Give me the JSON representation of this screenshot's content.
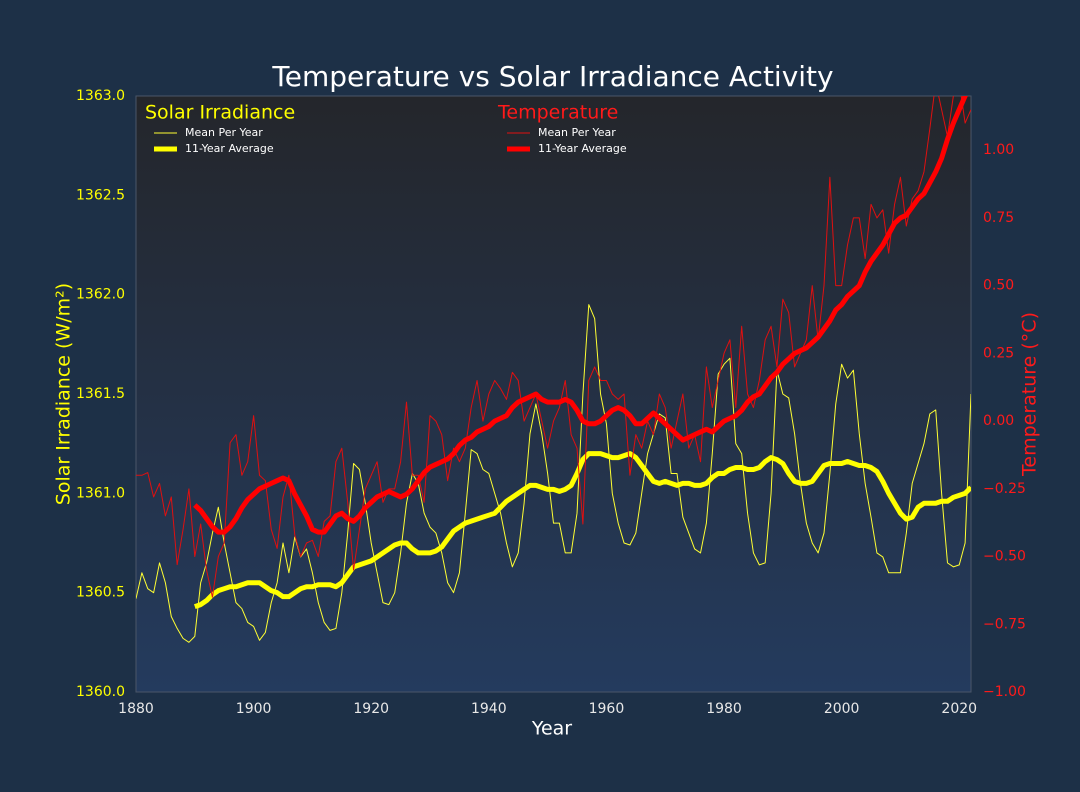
{
  "chart_data": {
    "type": "line",
    "title": "Temperature vs Solar Irradiance Activity",
    "xlabel": "Year",
    "ylabel": "Solar Irradiance (W/m²)",
    "y2label": "Temperature (°C)",
    "legend_titles": [
      "Solar Irradiance",
      "Temperature"
    ],
    "xlim": [
      1880,
      2022
    ],
    "xticks": [
      1880,
      1900,
      1920,
      1940,
      1960,
      1980,
      2000,
      2020
    ],
    "ylim": [
      1360,
      1363
    ],
    "yticks": [
      {
        "value": 1360,
        "label": "1360.0"
      },
      1360.5,
      {
        "value": 1361,
        "label": "1361.0"
      },
      1361.5,
      {
        "value": 1362,
        "label": "1362.0"
      },
      1362.5,
      {
        "value": 1363,
        "label": "1363.0"
      }
    ],
    "y2lim": [
      -1,
      1.2
    ],
    "y2ticks": [
      {
        "value": -1,
        "label": "−1.00"
      },
      {
        "value": -0.75,
        "label": "−0.75"
      },
      {
        "value": -0.5,
        "label": "−0.50"
      },
      {
        "value": -0.25,
        "label": "−0.25"
      },
      {
        "value": 0,
        "label": "0.00"
      },
      {
        "value": 0.25,
        "label": "0.25"
      },
      {
        "value": 0.5,
        "label": "0.50"
      },
      {
        "value": 0.75,
        "label": "0.75"
      },
      {
        "value": 1,
        "label": "1.00"
      }
    ],
    "grid": false,
    "x": [
      1880,
      1881,
      1882,
      1883,
      1884,
      1885,
      1886,
      1887,
      1888,
      1889,
      1890,
      1891,
      1892,
      1893,
      1894,
      1895,
      1896,
      1897,
      1898,
      1899,
      1900,
      1901,
      1902,
      1903,
      1904,
      1905,
      1906,
      1907,
      1908,
      1909,
      1910,
      1911,
      1912,
      1913,
      1914,
      1915,
      1916,
      1917,
      1918,
      1919,
      1920,
      1921,
      1922,
      1923,
      1924,
      1925,
      1926,
      1927,
      1928,
      1929,
      1930,
      1931,
      1932,
      1933,
      1934,
      1935,
      1936,
      1937,
      1938,
      1939,
      1940,
      1941,
      1942,
      1943,
      1944,
      1945,
      1946,
      1947,
      1948,
      1949,
      1950,
      1951,
      1952,
      1953,
      1954,
      1955,
      1956,
      1957,
      1958,
      1959,
      1960,
      1961,
      1962,
      1963,
      1964,
      1965,
      1966,
      1967,
      1968,
      1969,
      1970,
      1971,
      1972,
      1973,
      1974,
      1975,
      1976,
      1977,
      1978,
      1979,
      1980,
      1981,
      1982,
      1983,
      1984,
      1985,
      1986,
      1987,
      1988,
      1989,
      1990,
      1991,
      1992,
      1993,
      1994,
      1995,
      1996,
      1997,
      1998,
      1999,
      2000,
      2001,
      2002,
      2003,
      2004,
      2005,
      2006,
      2007,
      2008,
      2009,
      2010,
      2011,
      2012,
      2013,
      2014,
      2015,
      2016,
      2017,
      2018,
      2019,
      2020,
      2021,
      2022
    ],
    "series": [
      {
        "name": "Mean Per Year",
        "axis": "y",
        "color": "#ffff33",
        "values": [
          1360.47,
          1360.6,
          1360.52,
          1360.5,
          1360.65,
          1360.55,
          1360.38,
          1360.32,
          1360.27,
          1360.25,
          1360.28,
          1360.55,
          1360.65,
          1360.8,
          1360.93,
          1360.75,
          1360.6,
          1360.45,
          1360.42,
          1360.35,
          1360.33,
          1360.26,
          1360.3,
          1360.45,
          1360.55,
          1360.75,
          1360.6,
          1360.78,
          1360.68,
          1360.72,
          1360.6,
          1360.45,
          1360.35,
          1360.31,
          1360.32,
          1360.5,
          1360.8,
          1361.15,
          1361.12,
          1360.95,
          1360.75,
          1360.6,
          1360.45,
          1360.44,
          1360.5,
          1360.7,
          1360.95,
          1361.1,
          1361.05,
          1360.9,
          1360.83,
          1360.8,
          1360.7,
          1360.55,
          1360.5,
          1360.6,
          1360.9,
          1361.22,
          1361.2,
          1361.12,
          1361.1,
          1361.0,
          1360.9,
          1360.75,
          1360.63,
          1360.7,
          1360.95,
          1361.3,
          1361.45,
          1361.3,
          1361.1,
          1360.85,
          1360.85,
          1360.7,
          1360.7,
          1360.9,
          1361.5,
          1361.95,
          1361.88,
          1361.5,
          1361.35,
          1361.0,
          1360.85,
          1360.75,
          1360.74,
          1360.8,
          1361.0,
          1361.2,
          1361.3,
          1361.4,
          1361.38,
          1361.1,
          1361.1,
          1360.88,
          1360.8,
          1360.72,
          1360.7,
          1360.85,
          1361.2,
          1361.6,
          1361.65,
          1361.68,
          1361.25,
          1361.2,
          1360.9,
          1360.7,
          1360.64,
          1360.65,
          1361.0,
          1361.62,
          1361.5,
          1361.48,
          1361.3,
          1361.05,
          1360.85,
          1360.75,
          1360.7,
          1360.8,
          1361.1,
          1361.45,
          1361.65,
          1361.58,
          1361.62,
          1361.3,
          1361.05,
          1360.88,
          1360.7,
          1360.68,
          1360.6,
          1360.6,
          1360.6,
          1360.8,
          1361.05,
          1361.15,
          1361.25,
          1361.4,
          1361.42,
          1361.0,
          1360.65,
          1360.63,
          1360.64,
          1360.75,
          1361.5
        ]
      },
      {
        "name": "11-Year Average",
        "axis": "y",
        "color": "#ffff00",
        "values": [
          null,
          null,
          null,
          null,
          null,
          null,
          null,
          null,
          null,
          null,
          1360.43,
          1360.44,
          1360.46,
          1360.49,
          1360.51,
          1360.52,
          1360.53,
          1360.53,
          1360.54,
          1360.55,
          1360.55,
          1360.55,
          1360.53,
          1360.51,
          1360.5,
          1360.48,
          1360.48,
          1360.5,
          1360.52,
          1360.53,
          1360.53,
          1360.54,
          1360.54,
          1360.54,
          1360.53,
          1360.55,
          1360.59,
          1360.63,
          1360.64,
          1360.65,
          1360.66,
          1360.68,
          1360.7,
          1360.72,
          1360.74,
          1360.75,
          1360.75,
          1360.72,
          1360.7,
          1360.7,
          1360.7,
          1360.71,
          1360.73,
          1360.77,
          1360.81,
          1360.83,
          1360.85,
          1360.86,
          1360.87,
          1360.88,
          1360.89,
          1360.9,
          1360.93,
          1360.96,
          1360.98,
          1361.0,
          1361.02,
          1361.04,
          1361.04,
          1361.03,
          1361.02,
          1361.02,
          1361.01,
          1361.02,
          1361.04,
          1361.1,
          1361.17,
          1361.2,
          1361.2,
          1361.2,
          1361.19,
          1361.18,
          1361.18,
          1361.19,
          1361.2,
          1361.18,
          1361.14,
          1361.1,
          1361.06,
          1361.05,
          1361.06,
          1361.05,
          1361.04,
          1361.05,
          1361.05,
          1361.04,
          1361.04,
          1361.05,
          1361.08,
          1361.1,
          1361.1,
          1361.12,
          1361.13,
          1361.13,
          1361.12,
          1361.12,
          1361.13,
          1361.16,
          1361.18,
          1361.17,
          1361.15,
          1361.1,
          1361.06,
          1361.05,
          1361.05,
          1361.06,
          1361.1,
          1361.14,
          1361.15,
          1361.15,
          1361.15,
          1361.16,
          1361.15,
          1361.14,
          1361.14,
          1361.13,
          1361.11,
          1361.06,
          1361.0,
          1360.95,
          1360.9,
          1360.87,
          1360.88,
          1360.93,
          1360.95,
          1360.95,
          1360.95,
          1360.96,
          1360.96,
          1360.98,
          1360.99,
          1361.0,
          1361.03
        ]
      },
      {
        "name": "Mean Per Year",
        "axis": "y2",
        "color": "#e01010",
        "values": [
          -0.2,
          -0.2,
          -0.19,
          -0.28,
          -0.23,
          -0.35,
          -0.28,
          -0.53,
          -0.4,
          -0.25,
          -0.5,
          -0.38,
          -0.55,
          -0.65,
          -0.5,
          -0.45,
          -0.08,
          -0.05,
          -0.2,
          -0.15,
          0.02,
          -0.2,
          -0.22,
          -0.4,
          -0.47,
          -0.28,
          -0.2,
          -0.42,
          -0.5,
          -0.45,
          -0.44,
          -0.5,
          -0.37,
          -0.35,
          -0.15,
          -0.1,
          -0.3,
          -0.55,
          -0.4,
          -0.25,
          -0.2,
          -0.15,
          -0.3,
          -0.25,
          -0.25,
          -0.15,
          0.07,
          -0.2,
          -0.2,
          -0.3,
          0.02,
          0.0,
          -0.05,
          -0.22,
          -0.1,
          -0.15,
          -0.1,
          0.05,
          0.15,
          0.0,
          0.1,
          0.15,
          0.12,
          0.08,
          0.18,
          0.15,
          0.0,
          0.05,
          0.1,
          0.0,
          -0.1,
          0.0,
          0.05,
          0.15,
          -0.05,
          -0.1,
          -0.38,
          0.15,
          0.2,
          0.15,
          0.15,
          0.1,
          0.08,
          0.1,
          -0.2,
          -0.05,
          -0.1,
          0.0,
          -0.05,
          0.1,
          0.05,
          -0.1,
          0.0,
          0.1,
          -0.1,
          -0.05,
          -0.15,
          0.2,
          0.05,
          0.15,
          0.25,
          0.3,
          0.05,
          0.35,
          0.1,
          0.05,
          0.15,
          0.3,
          0.35,
          0.2,
          0.45,
          0.4,
          0.2,
          0.25,
          0.3,
          0.5,
          0.3,
          0.5,
          0.9,
          0.5,
          0.5,
          0.65,
          0.75,
          0.75,
          0.6,
          0.8,
          0.75,
          0.78,
          0.62,
          0.8,
          0.9,
          0.72,
          0.82,
          0.85,
          0.92,
          1.08,
          1.25,
          1.15,
          1.05,
          1.2,
          1.25,
          1.1,
          1.15
        ]
      },
      {
        "name": "11-Year Average",
        "axis": "y2",
        "color": "#ff0000",
        "values": [
          null,
          null,
          null,
          null,
          null,
          null,
          null,
          null,
          null,
          null,
          -0.31,
          -0.33,
          -0.36,
          -0.39,
          -0.41,
          -0.41,
          -0.39,
          -0.36,
          -0.32,
          -0.29,
          -0.27,
          -0.25,
          -0.24,
          -0.23,
          -0.22,
          -0.21,
          -0.22,
          -0.27,
          -0.31,
          -0.35,
          -0.4,
          -0.41,
          -0.41,
          -0.38,
          -0.35,
          -0.34,
          -0.36,
          -0.37,
          -0.35,
          -0.32,
          -0.3,
          -0.28,
          -0.27,
          -0.26,
          -0.27,
          -0.28,
          -0.27,
          -0.25,
          -0.22,
          -0.19,
          -0.17,
          -0.16,
          -0.15,
          -0.14,
          -0.12,
          -0.09,
          -0.07,
          -0.06,
          -0.04,
          -0.03,
          -0.02,
          0.0,
          0.01,
          0.02,
          0.05,
          0.07,
          0.08,
          0.09,
          0.1,
          0.08,
          0.07,
          0.07,
          0.07,
          0.08,
          0.07,
          0.04,
          0.0,
          -0.01,
          -0.01,
          0.0,
          0.02,
          0.04,
          0.05,
          0.04,
          0.02,
          -0.01,
          -0.01,
          0.01,
          0.03,
          0.01,
          -0.01,
          -0.03,
          -0.05,
          -0.07,
          -0.06,
          -0.05,
          -0.04,
          -0.03,
          -0.04,
          -0.02,
          0.0,
          0.01,
          0.02,
          0.04,
          0.07,
          0.09,
          0.1,
          0.13,
          0.16,
          0.18,
          0.21,
          0.23,
          0.25,
          0.26,
          0.27,
          0.29,
          0.31,
          0.34,
          0.37,
          0.41,
          0.43,
          0.46,
          0.48,
          0.5,
          0.55,
          0.59,
          0.62,
          0.65,
          0.69,
          0.73,
          0.75,
          0.76,
          0.79,
          0.82,
          0.84,
          0.88,
          0.92,
          0.97,
          1.04,
          1.1,
          1.15,
          1.2,
          1.25
        ]
      }
    ]
  }
}
